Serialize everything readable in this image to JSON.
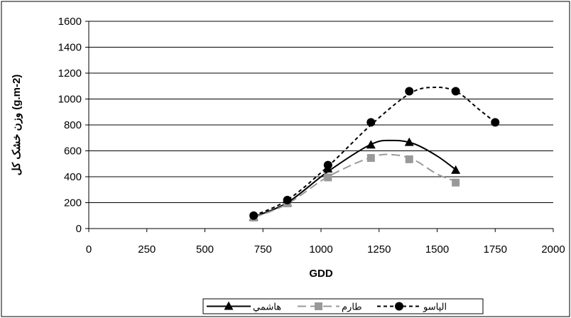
{
  "chart_data": {
    "type": "line",
    "title": "",
    "xlabel": "GDD",
    "ylabel": "وزن خشک کل (g.m-2)",
    "xlim": [
      0,
      2000
    ],
    "ylim": [
      0,
      1600
    ],
    "xticks": [
      0,
      250,
      500,
      750,
      1000,
      1250,
      1500,
      1750,
      2000
    ],
    "yticks": [
      0,
      200,
      400,
      600,
      800,
      1000,
      1200,
      1400,
      1600
    ],
    "grid": "horizontal",
    "legend_position": "bottom",
    "series": [
      {
        "name": "هاشمي",
        "color": "#000000",
        "line_style": "solid",
        "marker": "triangle",
        "points": [
          [
            710,
            90
          ],
          [
            855,
            200
          ],
          [
            1030,
            460
          ],
          [
            1215,
            645
          ],
          [
            1380,
            665
          ],
          [
            1580,
            450
          ]
        ],
        "curve": [
          [
            710,
            90
          ],
          [
            855,
            200
          ],
          [
            1030,
            440
          ],
          [
            1215,
            650
          ],
          [
            1310,
            680
          ],
          [
            1400,
            655
          ],
          [
            1500,
            560
          ],
          [
            1580,
            455
          ]
        ]
      },
      {
        "name": "طارم",
        "color": "#999999",
        "line_style": "long-dash",
        "marker": "square",
        "points": [
          [
            710,
            85
          ],
          [
            855,
            195
          ],
          [
            1030,
            395
          ],
          [
            1215,
            545
          ],
          [
            1380,
            535
          ],
          [
            1580,
            355
          ]
        ],
        "curve": [
          [
            710,
            85
          ],
          [
            855,
            190
          ],
          [
            1030,
            400
          ],
          [
            1215,
            550
          ],
          [
            1310,
            570
          ],
          [
            1400,
            530
          ],
          [
            1500,
            420
          ],
          [
            1580,
            365
          ]
        ]
      },
      {
        "name": "الپاسو",
        "color": "#000000",
        "line_style": "dash",
        "marker": "circle",
        "points": [
          [
            710,
            100
          ],
          [
            855,
            220
          ],
          [
            1030,
            490
          ],
          [
            1215,
            820
          ],
          [
            1380,
            1060
          ],
          [
            1580,
            1060
          ],
          [
            1750,
            820
          ]
        ],
        "curve": [
          [
            710,
            100
          ],
          [
            855,
            220
          ],
          [
            1030,
            480
          ],
          [
            1215,
            800
          ],
          [
            1380,
            1040
          ],
          [
            1480,
            1090
          ],
          [
            1580,
            1060
          ],
          [
            1680,
            920
          ],
          [
            1750,
            820
          ]
        ]
      }
    ]
  }
}
